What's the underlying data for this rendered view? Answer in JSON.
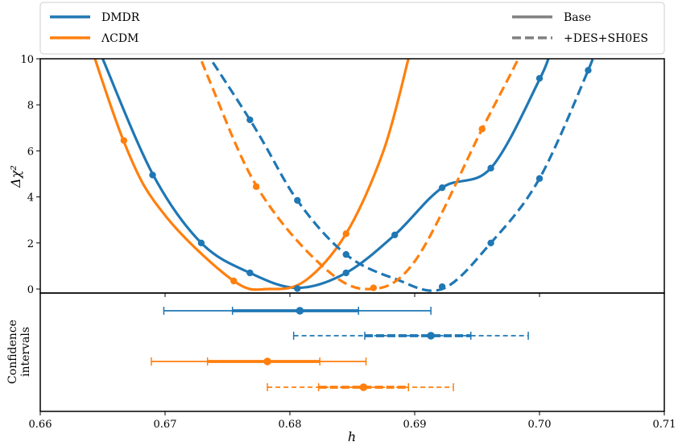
{
  "chart_data": {
    "type": "line",
    "xlabel": "h",
    "xlim": [
      0.66,
      0.71
    ],
    "xticks": [
      "0.66",
      "0.67",
      "0.68",
      "0.69",
      "0.70",
      "0.71"
    ],
    "top_panel": {
      "ylabel": "Δχ²",
      "ylim": [
        0,
        10
      ],
      "yticks": [
        "0",
        "2",
        "4",
        "6",
        "8",
        "10"
      ],
      "series": [
        {
          "name": "DMDR",
          "dataset": "Base",
          "color": "#1f77b4",
          "style": "solid",
          "curve": [
            [
              0.665,
              10.0
            ],
            [
              0.669,
              5.0
            ],
            [
              0.6729,
              2.0
            ],
            [
              0.6768,
              0.7
            ],
            [
              0.6806,
              0.05
            ],
            [
              0.6845,
              0.7
            ],
            [
              0.6884,
              2.35
            ],
            [
              0.6922,
              4.4
            ],
            [
              0.6961,
              5.25
            ],
            [
              0.7,
              9.1
            ],
            [
              0.701,
              10.5
            ]
          ],
          "points": [
            [
              0.669,
              4.95
            ],
            [
              0.6729,
              2.0
            ],
            [
              0.6768,
              0.7
            ],
            [
              0.6806,
              0.02
            ],
            [
              0.6845,
              0.7
            ],
            [
              0.6884,
              2.35
            ],
            [
              0.6922,
              4.4
            ],
            [
              0.6961,
              5.25
            ],
            [
              0.7,
              9.15
            ]
          ]
        },
        {
          "name": "ΛCDM",
          "dataset": "Base",
          "color": "#ff7f0e",
          "style": "solid",
          "curve": [
            [
              0.662,
              14.0
            ],
            [
              0.6667,
              6.4
            ],
            [
              0.67,
              3.2
            ],
            [
              0.6755,
              0.35
            ],
            [
              0.6783,
              0.0
            ],
            [
              0.6812,
              0.35
            ],
            [
              0.6845,
              2.4
            ],
            [
              0.6875,
              6.0
            ],
            [
              0.6895,
              10.0
            ]
          ],
          "points": [
            [
              0.6667,
              6.45
            ],
            [
              0.6755,
              0.35
            ],
            [
              0.6845,
              2.4
            ]
          ]
        },
        {
          "name": "DMDR",
          "dataset": "+DES+SH0ES",
          "color": "#1f77b4",
          "style": "dashed",
          "curve": [
            [
              0.67,
              13.0
            ],
            [
              0.6768,
              7.35
            ],
            [
              0.6806,
              3.85
            ],
            [
              0.6845,
              1.5
            ],
            [
              0.6884,
              0.45
            ],
            [
              0.6922,
              0.0
            ],
            [
              0.6961,
              2.0
            ],
            [
              0.7,
              4.8
            ],
            [
              0.7039,
              9.5
            ],
            [
              0.7045,
              10.5
            ]
          ],
          "points": [
            [
              0.6768,
              7.35
            ],
            [
              0.6806,
              3.85
            ],
            [
              0.6845,
              1.5
            ],
            [
              0.6922,
              0.1
            ],
            [
              0.6961,
              2.0
            ],
            [
              0.7,
              4.8
            ],
            [
              0.7039,
              9.5
            ]
          ]
        },
        {
          "name": "ΛCDM",
          "dataset": "+DES+SH0ES",
          "color": "#ff7f0e",
          "style": "dashed",
          "curve": [
            [
              0.67,
              14.0
            ],
            [
              0.6736,
              9.0
            ],
            [
              0.6773,
              4.5
            ],
            [
              0.682,
              1.3
            ],
            [
              0.686,
              0.0
            ],
            [
              0.69,
              1.2
            ],
            [
              0.6954,
              6.95
            ],
            [
              0.6983,
              10.0
            ],
            [
              0.699,
              11.0
            ]
          ],
          "points": [
            [
              0.6773,
              4.45
            ],
            [
              0.6867,
              0.05
            ],
            [
              0.6954,
              6.95
            ]
          ]
        }
      ]
    },
    "bottom_panel": {
      "ylabel": [
        "Confidence",
        "intervals"
      ],
      "intervals": [
        {
          "name": "DMDR",
          "dataset": "Base",
          "color": "#1f77b4",
          "style": "solid",
          "center": 0.6808,
          "sigma1": [
            0.6754,
            0.6855
          ],
          "sigma2": [
            0.6699,
            0.6913
          ]
        },
        {
          "name": "DMDR",
          "dataset": "+DES+SH0ES",
          "color": "#1f77b4",
          "style": "dashed",
          "center": 0.6913,
          "sigma1": [
            0.686,
            0.6945
          ],
          "sigma2": [
            0.6803,
            0.6991
          ]
        },
        {
          "name": "ΛCDM",
          "dataset": "Base",
          "color": "#ff7f0e",
          "style": "solid",
          "center": 0.6782,
          "sigma1": [
            0.6734,
            0.6824
          ],
          "sigma2": [
            0.6689,
            0.6861
          ]
        },
        {
          "name": "ΛCDM",
          "dataset": "+DES+SH0ES",
          "color": "#ff7f0e",
          "style": "dashed",
          "center": 0.6859,
          "sigma1": [
            0.6823,
            0.6895
          ],
          "sigma2": [
            0.6782,
            0.6931
          ]
        }
      ]
    },
    "legend": {
      "placement": "top",
      "models": [
        {
          "label": "DMDR",
          "color": "#1f77b4"
        },
        {
          "label": "ΛCDM",
          "color": "#ff7f0e"
        }
      ],
      "datasets": [
        {
          "label": "Base",
          "color": "#808080",
          "style": "solid"
        },
        {
          "label": "+DES+SH0ES",
          "color": "#808080",
          "style": "dashed"
        }
      ]
    }
  }
}
